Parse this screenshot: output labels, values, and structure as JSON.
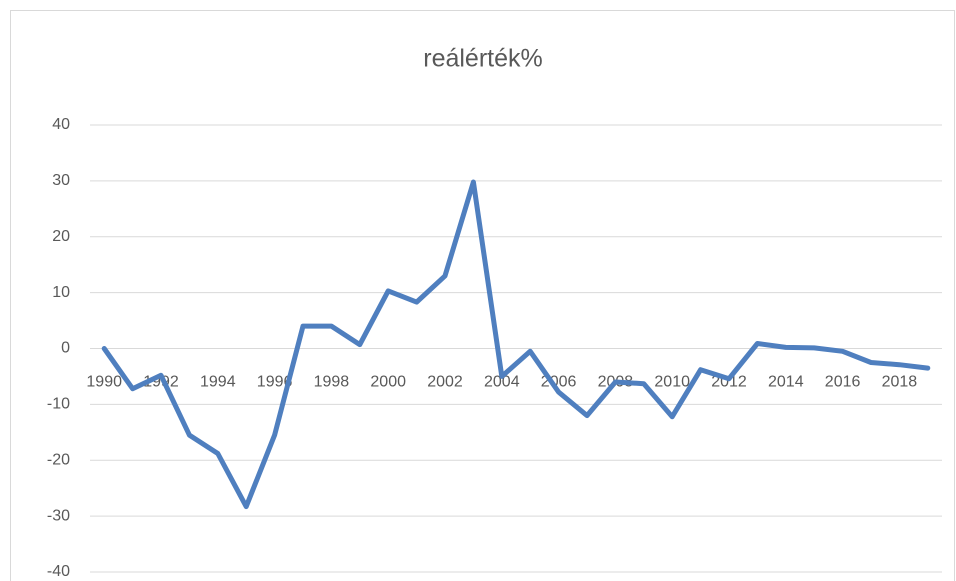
{
  "chart_data": {
    "type": "line",
    "title": "reálérték%",
    "categories": [
      "1990",
      null,
      "1992",
      null,
      "1994",
      null,
      "1996",
      null,
      "1998",
      null,
      "2000",
      null,
      "2002",
      null,
      "2004",
      null,
      "2006",
      null,
      "2008",
      null,
      "2010",
      null,
      "2012",
      null,
      "2014",
      null,
      "2016",
      null,
      "2018",
      null
    ],
    "series": [
      {
        "name": "reálérték%",
        "color": "#4f7fbf",
        "values": [
          0,
          -7.2,
          -4.8,
          -15.5,
          -18.8,
          -28.3,
          -15.5,
          4,
          4,
          0.7,
          10.3,
          8.3,
          13,
          29.8,
          -5,
          -0.5,
          -7.8,
          -12,
          -6,
          -6.3,
          -12.2,
          -3.8,
          -5.4,
          0.9,
          0.2,
          0.1,
          -0.5,
          -2.5,
          -2.9,
          -3.5
        ]
      }
    ],
    "ylim": [
      -40,
      40
    ],
    "yticks": [
      -40,
      -30,
      -20,
      -10,
      0,
      10,
      20,
      30,
      40
    ],
    "grid": true
  }
}
